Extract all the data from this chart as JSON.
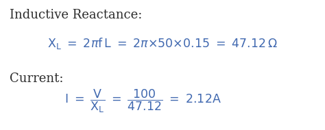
{
  "bg_color": "#ffffff",
  "text_color_black": "#2b2b2b",
  "text_color_blue": "#4169b0",
  "fig_width": 4.74,
  "fig_height": 1.9,
  "dpi": 100,
  "fontsize_label": 13,
  "fontsize_eq": 12.5
}
